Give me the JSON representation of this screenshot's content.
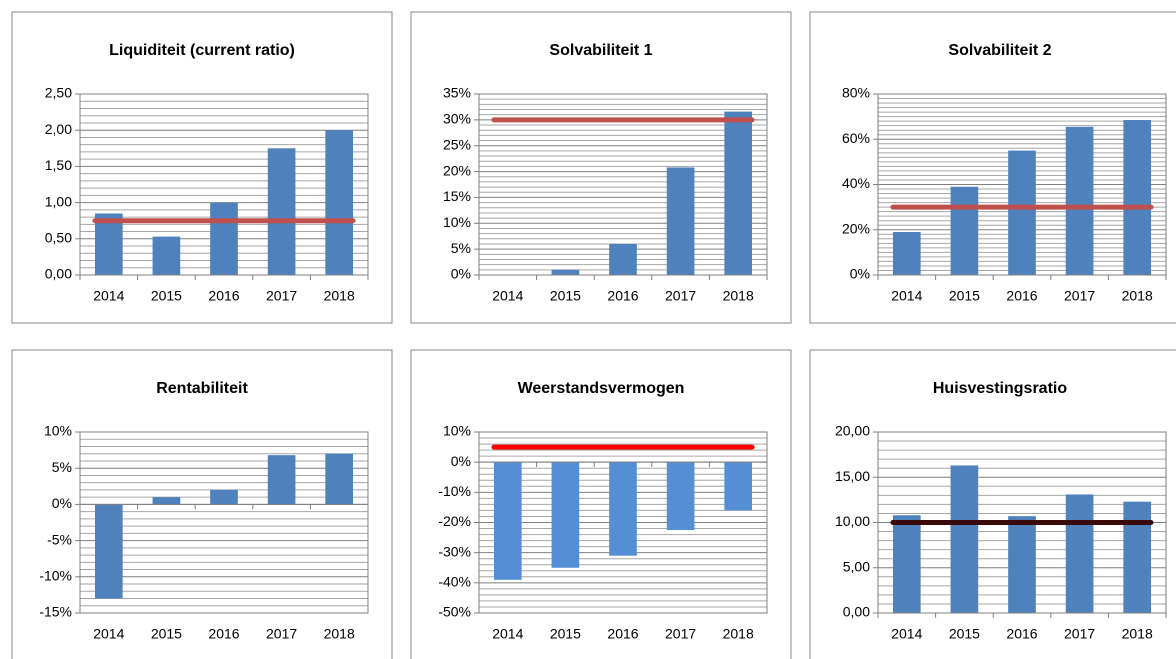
{
  "chart_data": [
    {
      "type": "bar",
      "title": "Liquiditeit (current ratio)",
      "categories": [
        "2014",
        "2015",
        "2016",
        "2017",
        "2018"
      ],
      "values": [
        0.85,
        0.53,
        1.0,
        1.75,
        2.0
      ],
      "color": "#4f81bd",
      "target": 0.75,
      "target_color": "#c0504d",
      "ylim": [
        0,
        2.5
      ],
      "yticks": [
        {
          "value": 0,
          "label": "0,00"
        },
        {
          "value": 0.5,
          "label": "0,50"
        },
        {
          "value": 1,
          "label": "1,00"
        },
        {
          "value": 1.5,
          "label": "1,50"
        },
        {
          "value": 2,
          "label": "2,00"
        },
        {
          "value": 2.5,
          "label": "2,50"
        }
      ],
      "grid": true,
      "minor_divisions": 5
    },
    {
      "type": "bar",
      "title": "Solvabiliteit 1",
      "categories": [
        "2014",
        "2015",
        "2016",
        "2017",
        "2018"
      ],
      "values": [
        0,
        1,
        6,
        20.8,
        31.6
      ],
      "color": "#4f81bd",
      "target": 30,
      "target_color": "#c0504d",
      "ylim": [
        0,
        35
      ],
      "yticks": [
        {
          "value": 0,
          "label": "0%"
        },
        {
          "value": 5,
          "label": "5%"
        },
        {
          "value": 10,
          "label": "10%"
        },
        {
          "value": 15,
          "label": "15%"
        },
        {
          "value": 20,
          "label": "20%"
        },
        {
          "value": 25,
          "label": "25%"
        },
        {
          "value": 30,
          "label": "30%"
        },
        {
          "value": 35,
          "label": "35%"
        }
      ],
      "grid": true,
      "minor_divisions": 5
    },
    {
      "type": "bar",
      "title": "Solvabiliteit 2",
      "categories": [
        "2014",
        "2015",
        "2016",
        "2017",
        "2018"
      ],
      "values": [
        19,
        39,
        55,
        65.5,
        68.5
      ],
      "color": "#4f81bd",
      "target": 30,
      "target_color": "#c0504d",
      "ylim": [
        0,
        80
      ],
      "yticks": [
        {
          "value": 0,
          "label": "0%"
        },
        {
          "value": 20,
          "label": "20%"
        },
        {
          "value": 40,
          "label": "40%"
        },
        {
          "value": 60,
          "label": "60%"
        },
        {
          "value": 80,
          "label": "80%"
        }
      ],
      "grid": true,
      "minor_divisions": 10
    },
    {
      "type": "bar",
      "title": "Rentabiliteit",
      "categories": [
        "2014",
        "2015",
        "2016",
        "2017",
        "2018"
      ],
      "values": [
        -13,
        1,
        2,
        6.8,
        7
      ],
      "color": "#4f81bd",
      "ylim": [
        -15,
        10
      ],
      "yticks": [
        {
          "value": -15,
          "label": "-15%"
        },
        {
          "value": -10,
          "label": "-10%"
        },
        {
          "value": -5,
          "label": "-5%"
        },
        {
          "value": 0,
          "label": "0%"
        },
        {
          "value": 5,
          "label": "5%"
        },
        {
          "value": 10,
          "label": "10%"
        }
      ],
      "grid": true,
      "minor_divisions": 5
    },
    {
      "type": "bar",
      "title": "Weerstandsvermogen",
      "categories": [
        "2014",
        "2015",
        "2016",
        "2017",
        "2018"
      ],
      "values": [
        -39,
        -35,
        -31,
        -22.5,
        -16
      ],
      "color": "#558ed5",
      "target": 5,
      "target_color": "#ff0000",
      "ylim": [
        -50,
        10
      ],
      "yticks": [
        {
          "value": -50,
          "label": "-50%"
        },
        {
          "value": -40,
          "label": "-40%"
        },
        {
          "value": -30,
          "label": "-30%"
        },
        {
          "value": -20,
          "label": "-20%"
        },
        {
          "value": -10,
          "label": "-10%"
        },
        {
          "value": 0,
          "label": "0%"
        },
        {
          "value": 10,
          "label": "10%"
        }
      ],
      "grid": true,
      "minor_divisions": 5
    },
    {
      "type": "bar",
      "title": "Huisvestingsratio",
      "categories": [
        "2014",
        "2015",
        "2016",
        "2017",
        "2018"
      ],
      "values": [
        10.8,
        16.3,
        10.7,
        13.1,
        12.3
      ],
      "color": "#4f81bd",
      "target": 10,
      "target_color": "#3a0a0a",
      "ylim": [
        0,
        20
      ],
      "yticks": [
        {
          "value": 0,
          "label": "0,00"
        },
        {
          "value": 5,
          "label": "5,00"
        },
        {
          "value": 10,
          "label": "10,00"
        },
        {
          "value": 15,
          "label": "15,00"
        },
        {
          "value": 20,
          "label": "20,00"
        }
      ],
      "grid": true,
      "minor_divisions": 5
    }
  ]
}
